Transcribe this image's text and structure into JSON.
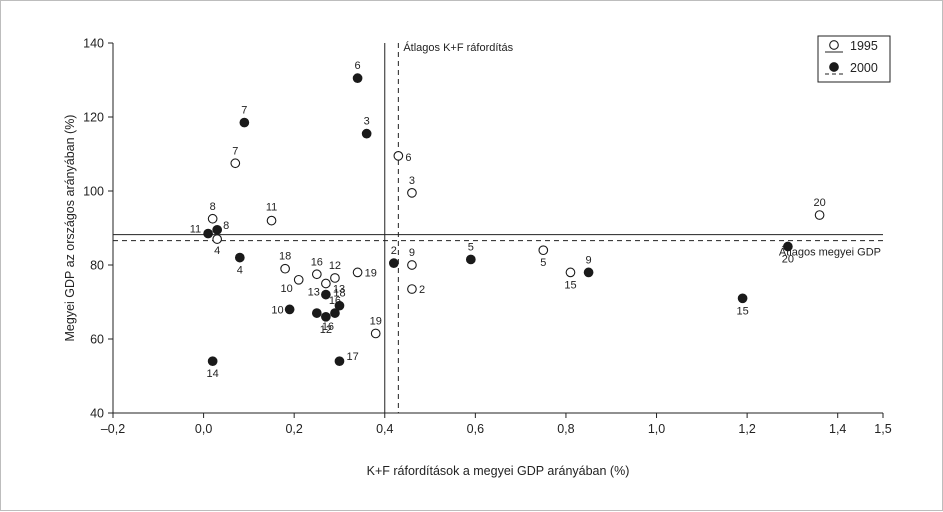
{
  "chart_data": {
    "type": "scatter",
    "xlabel": "K+F ráfordítások a megyei GDP arányában (%)",
    "ylabel": "Megyei GDP az országos arányában (%)",
    "xlim": [
      -0.2,
      1.5
    ],
    "ylim": [
      40,
      140
    ],
    "xticks": [
      -0.2,
      0.0,
      0.2,
      0.4,
      0.6,
      0.8,
      1.0,
      1.2,
      1.4,
      1.5
    ],
    "xtick_labels": [
      "–0,2",
      "0,0",
      "0,2",
      "0,4",
      "0,6",
      "0,8",
      "1,0",
      "1,2",
      "1,4",
      "1,5"
    ],
    "yticks": [
      40,
      60,
      80,
      100,
      120,
      140
    ],
    "ytick_labels": [
      "40",
      "60",
      "80",
      "100",
      "120",
      "140"
    ],
    "grid": false,
    "legend_position": "top-right",
    "legend": [
      {
        "label": "1995",
        "marker": "open-circle",
        "line": "solid"
      },
      {
        "label": "2000",
        "marker": "filled-circle",
        "line": "dashed"
      }
    ],
    "reference_lines": {
      "avg_rd_1995": 0.4,
      "avg_rd_2000": 0.43,
      "avg_gdp_1995": 88.2,
      "avg_gdp_2000": 86.6,
      "avg_rd_label": "Átlagos K+F ráfordítás",
      "avg_gdp_label": "Átlagos megyei GDP"
    },
    "series": [
      {
        "name": "1995",
        "marker": "open",
        "points": [
          {
            "label": "2",
            "x": 0.46,
            "y": 73.5
          },
          {
            "label": "3",
            "x": 0.46,
            "y": 99.5
          },
          {
            "label": "4",
            "x": 0.03,
            "y": 87.0
          },
          {
            "label": "5",
            "x": 0.75,
            "y": 84.0
          },
          {
            "label": "6",
            "x": 0.43,
            "y": 109.5
          },
          {
            "label": "7",
            "x": 0.07,
            "y": 107.5
          },
          {
            "label": "8",
            "x": 0.02,
            "y": 92.5
          },
          {
            "label": "9",
            "x": 0.46,
            "y": 80.0
          },
          {
            "label": "10",
            "x": 0.21,
            "y": 76.0
          },
          {
            "label": "11",
            "x": 0.15,
            "y": 92.0
          },
          {
            "label": "12",
            "x": 0.29,
            "y": 76.5
          },
          {
            "label": "13",
            "x": 0.27,
            "y": 75.0
          },
          {
            "label": "15",
            "x": 0.81,
            "y": 78.0
          },
          {
            "label": "16",
            "x": 0.25,
            "y": 77.5
          },
          {
            "label": "18",
            "x": 0.18,
            "y": 79.0
          },
          {
            "label": "19",
            "x": 0.34,
            "y": 78.0
          },
          {
            "label": "19",
            "x": 0.38,
            "y": 61.5
          },
          {
            "label": "20",
            "x": 1.36,
            "y": 93.5
          }
        ]
      },
      {
        "name": "2000",
        "marker": "filled",
        "points": [
          {
            "label": "2",
            "x": 0.42,
            "y": 80.5
          },
          {
            "label": "3",
            "x": 0.36,
            "y": 115.5
          },
          {
            "label": "4",
            "x": 0.08,
            "y": 82.0
          },
          {
            "label": "5",
            "x": 0.59,
            "y": 81.5
          },
          {
            "label": "6",
            "x": 0.34,
            "y": 130.5
          },
          {
            "label": "7",
            "x": 0.09,
            "y": 118.5
          },
          {
            "label": "8",
            "x": 0.03,
            "y": 89.5
          },
          {
            "label": "9",
            "x": 0.85,
            "y": 78.0
          },
          {
            "label": "10",
            "x": 0.19,
            "y": 68.0
          },
          {
            "label": "11",
            "x": 0.01,
            "y": 88.5
          },
          {
            "label": "12",
            "x": 0.27,
            "y": 66.0
          },
          {
            "label": "13",
            "x": 0.27,
            "y": 72.0
          },
          {
            "label": "14",
            "x": 0.02,
            "y": 54.0
          },
          {
            "label": "15",
            "x": 1.19,
            "y": 71.0
          },
          {
            "label": "16",
            "x": 0.25,
            "y": 67.0
          },
          {
            "label": "16",
            "x": 0.29,
            "y": 67.0
          },
          {
            "label": "17",
            "x": 0.3,
            "y": 54.0
          },
          {
            "label": "18",
            "x": 0.3,
            "y": 69.0
          },
          {
            "label": "20",
            "x": 1.29,
            "y": 85.0
          }
        ]
      }
    ]
  }
}
